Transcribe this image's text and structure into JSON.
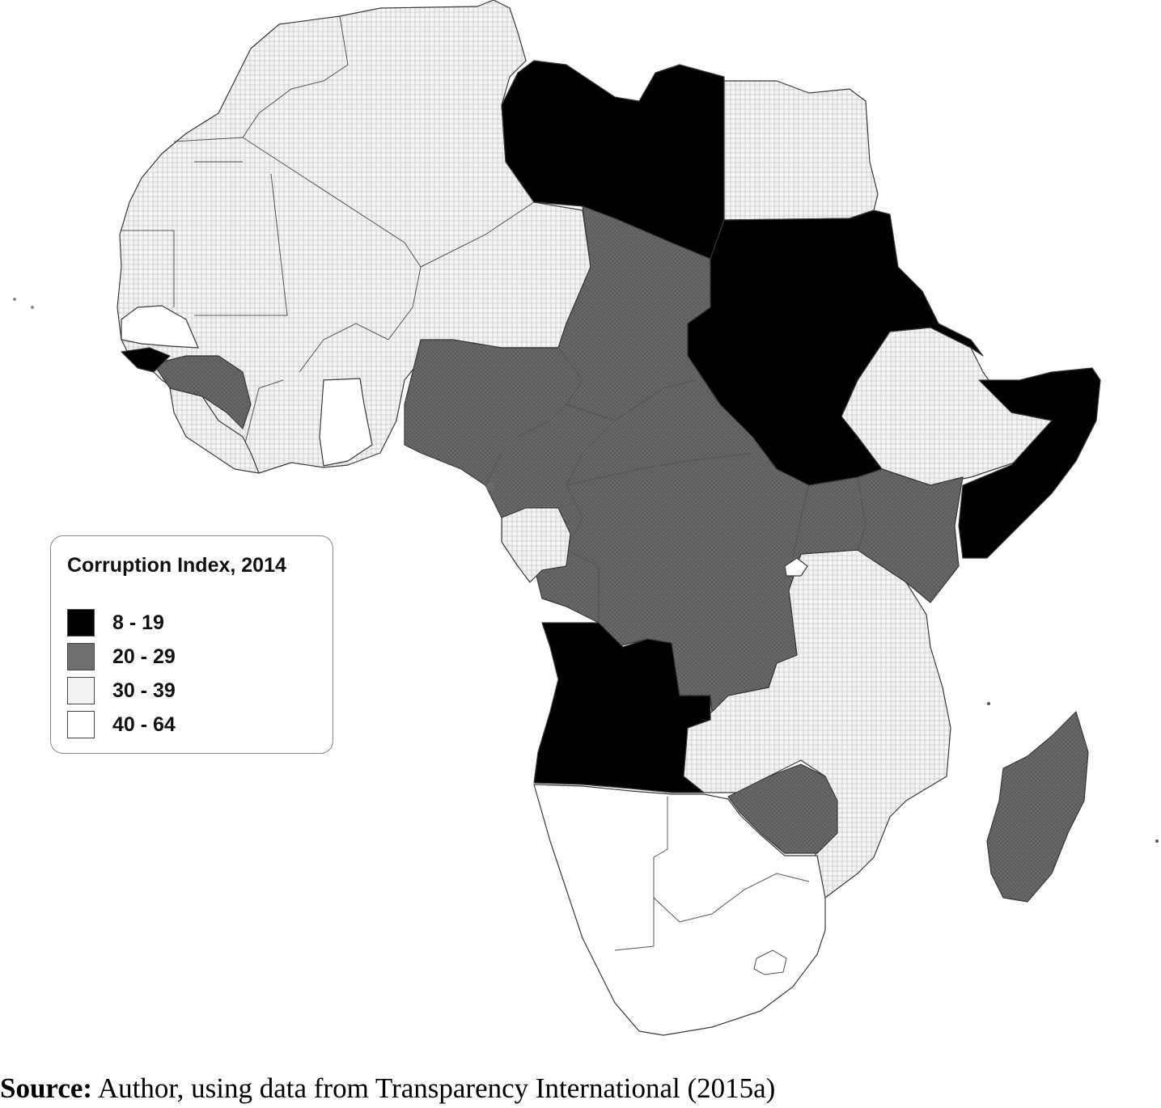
{
  "legend": {
    "title": "Corruption Index, 2014",
    "classes": [
      {
        "label": "8 - 19",
        "color": "#000000",
        "pattern": "solid"
      },
      {
        "label": "20 - 29",
        "color": "#6e6e6e",
        "pattern": "hatch-dark"
      },
      {
        "label": "30 - 39",
        "color": "#f2f2f2",
        "pattern": "hatch-light"
      },
      {
        "label": "40 - 64",
        "color": "#ffffff",
        "pattern": "none"
      }
    ]
  },
  "source": {
    "label": "Source:",
    "text": " Author, using data from Transparency International (2015a)"
  }
}
